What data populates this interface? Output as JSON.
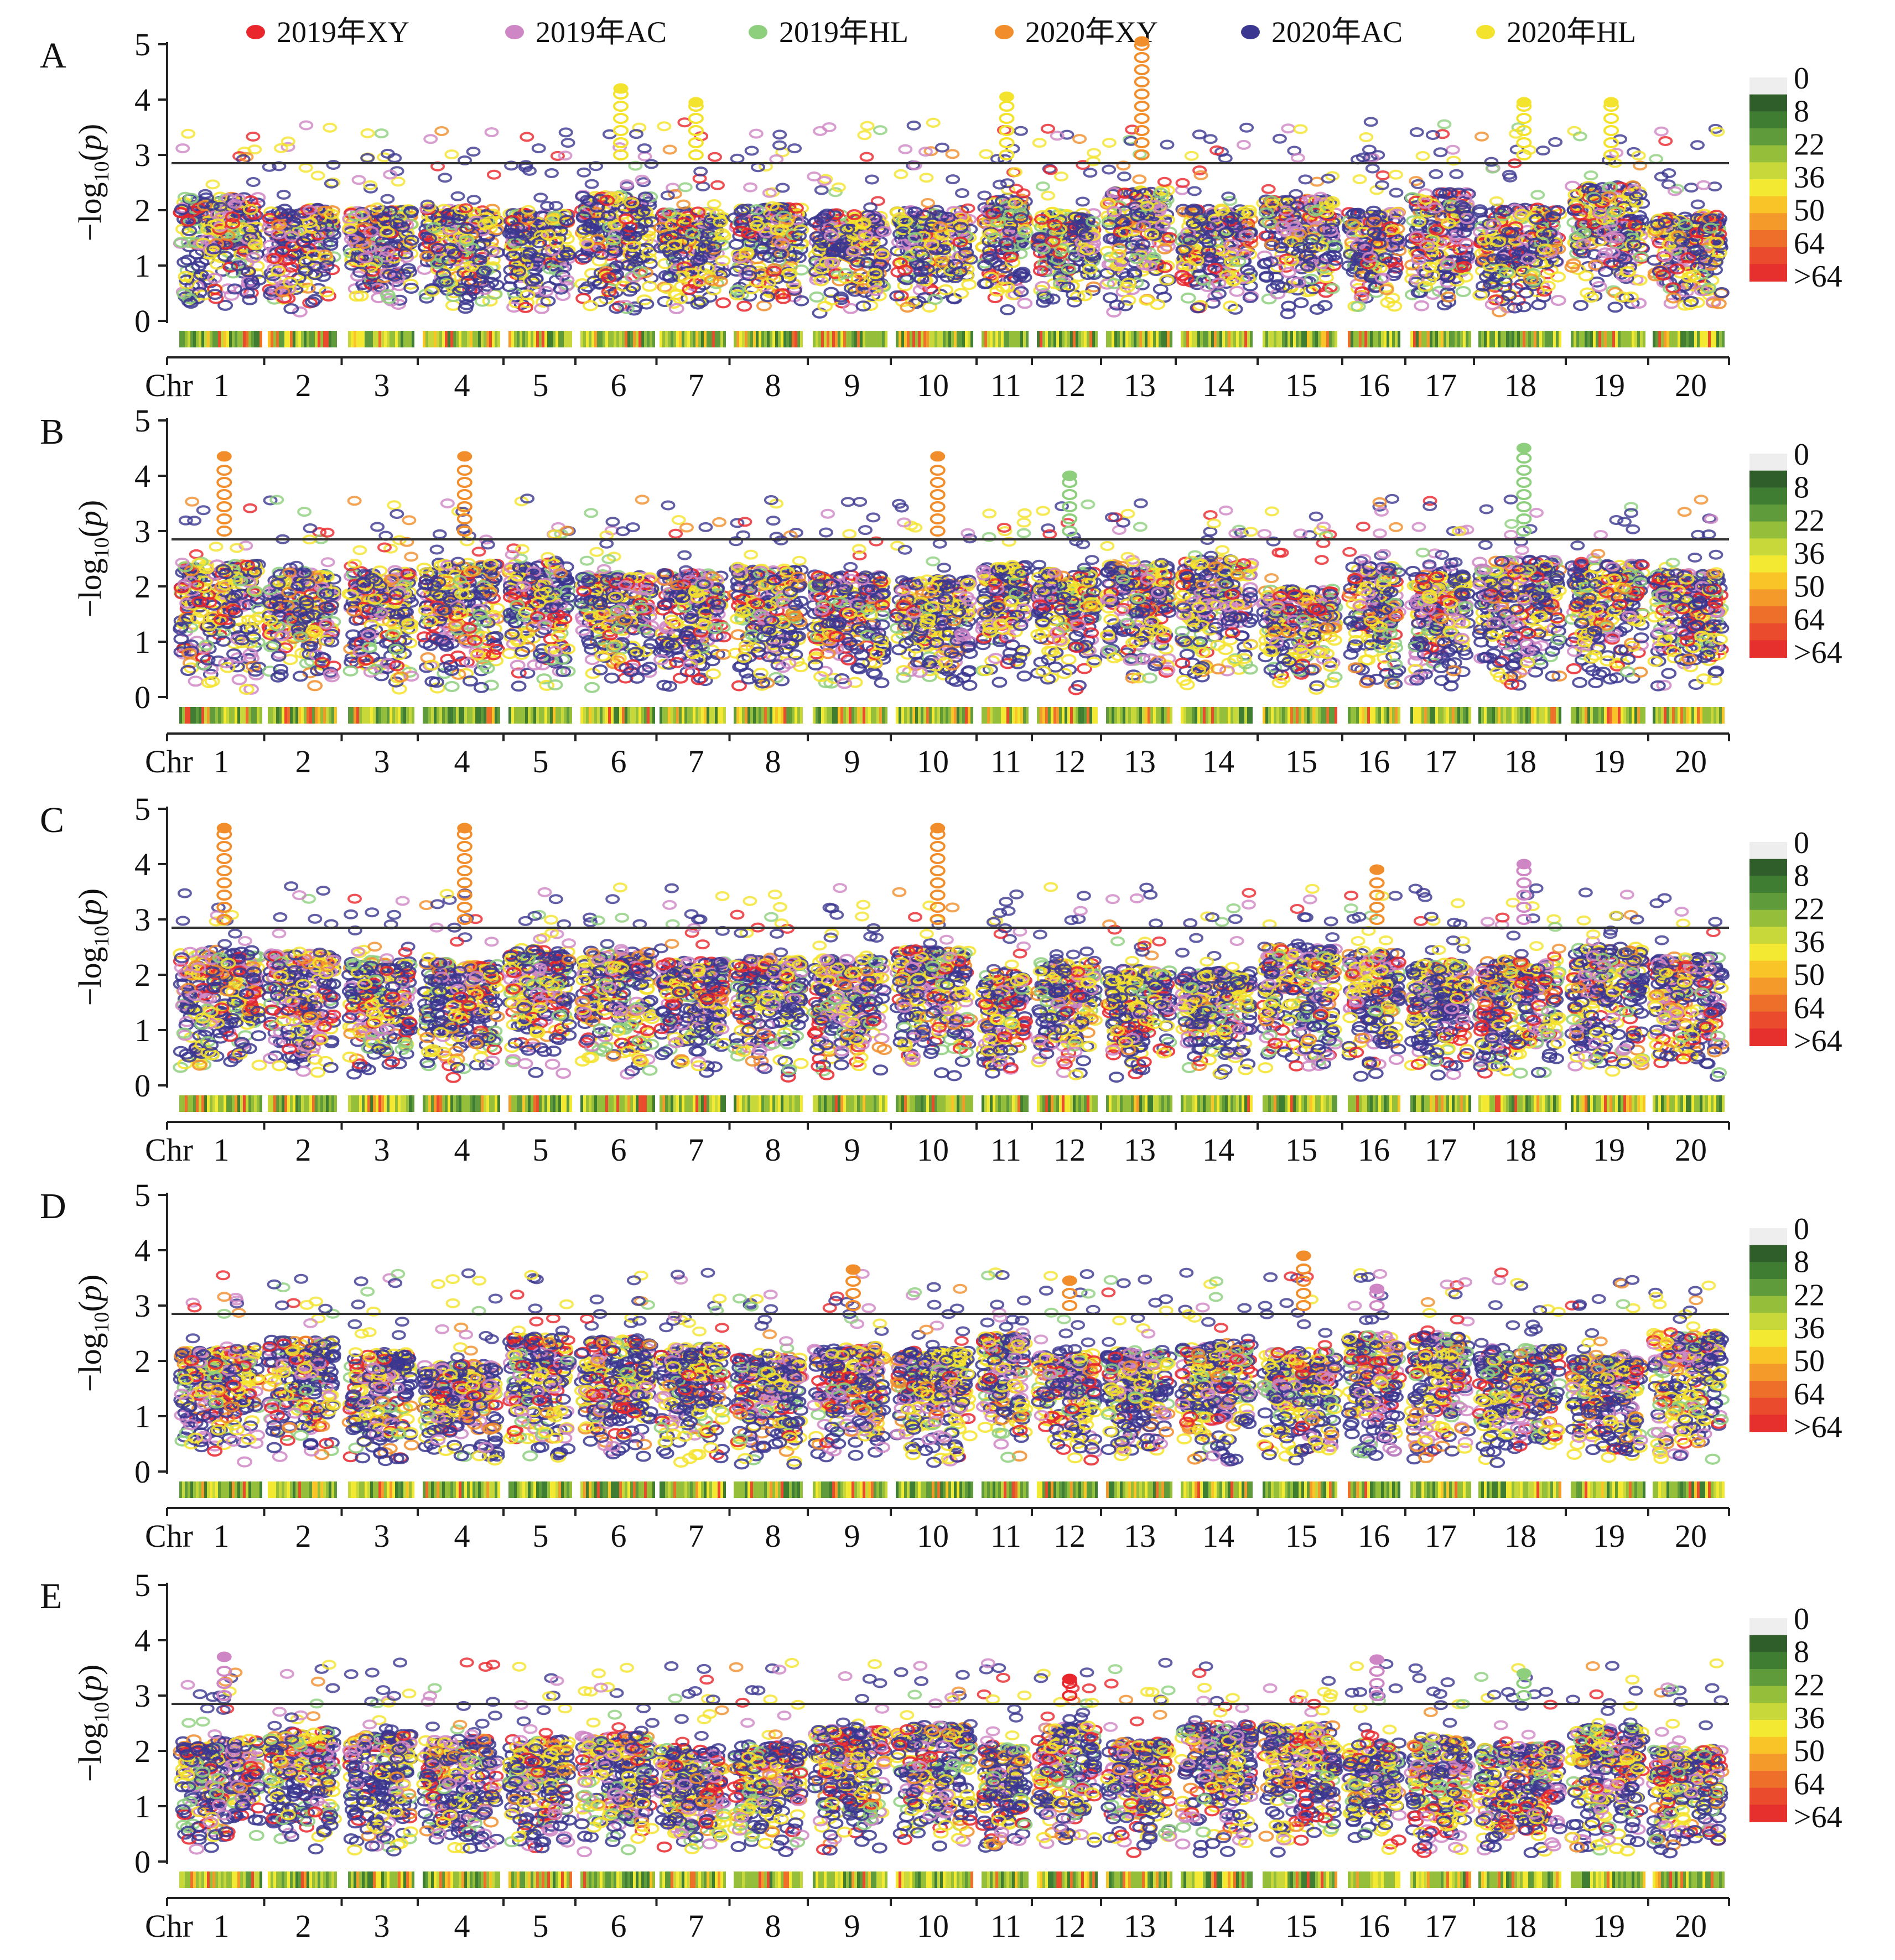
{
  "legend": [
    {
      "label": "2019年XY",
      "color": "#e8262b"
    },
    {
      "label": "2019年AC",
      "color": "#cf86c4"
    },
    {
      "label": "2019年HL",
      "color": "#8ecf7e"
    },
    {
      "label": "2020年XY",
      "color": "#f18d2a"
    },
    {
      "label": "2020年AC",
      "color": "#3b3790"
    },
    {
      "label": "2020年HL",
      "color": "#f4e32c"
    }
  ],
  "colorbar": {
    "labels": [
      "0",
      "8",
      "22",
      "36",
      "50",
      "64",
      ">64"
    ],
    "colors": [
      "#efeeee",
      "#2f5e2a",
      "#3f7d33",
      "#5f9b3a",
      "#95be3b",
      "#c8d83a",
      "#f3e933",
      "#f8c428",
      "#f39a2a",
      "#ee6f2a",
      "#e94b2c",
      "#e6302d"
    ]
  },
  "axis": {
    "ylabel": "−log10(p)",
    "yticks": [
      "0",
      "1",
      "2",
      "3",
      "4",
      "5"
    ],
    "xprefix": "Chr",
    "chromosomes": [
      "1",
      "2",
      "3",
      "4",
      "5",
      "6",
      "7",
      "8",
      "9",
      "10",
      "11",
      "12",
      "13",
      "14",
      "15",
      "16",
      "17",
      "18",
      "19",
      "20"
    ]
  },
  "chart_data": {
    "type": "scatter",
    "subtype": "multi-environment manhattan plot",
    "ylim": [
      0,
      5
    ],
    "threshold": 2.85,
    "series_names": [
      "2019年XY",
      "2019年AC",
      "2019年HL",
      "2020年XY",
      "2020年AC",
      "2020年HL"
    ],
    "panels": [
      {
        "label": "A",
        "top_hits": [
          {
            "chr": 6,
            "value": 4.2,
            "series": "2020年HL"
          },
          {
            "chr": 7,
            "value": 3.95,
            "series": "2020年HL"
          },
          {
            "chr": 11,
            "value": 4.05,
            "series": "2020年HL"
          },
          {
            "chr": 13,
            "value": 5.05,
            "series": "2020年XY"
          },
          {
            "chr": 18,
            "value": 3.95,
            "series": "2020年HL"
          },
          {
            "chr": 19,
            "value": 3.95,
            "series": "2020年HL"
          }
        ]
      },
      {
        "label": "B",
        "top_hits": [
          {
            "chr": 1,
            "value": 4.35,
            "series": "2020年XY"
          },
          {
            "chr": 4,
            "value": 4.35,
            "series": "2020年XY"
          },
          {
            "chr": 10,
            "value": 4.35,
            "series": "2020年XY"
          },
          {
            "chr": 12,
            "value": 4.0,
            "series": "2019年HL"
          },
          {
            "chr": 18,
            "value": 4.5,
            "series": "2019年HL"
          }
        ]
      },
      {
        "label": "C",
        "top_hits": [
          {
            "chr": 1,
            "value": 4.65,
            "series": "2020年XY"
          },
          {
            "chr": 4,
            "value": 4.65,
            "series": "2020年XY"
          },
          {
            "chr": 10,
            "value": 4.65,
            "series": "2020年XY"
          },
          {
            "chr": 16,
            "value": 3.9,
            "series": "2020年XY"
          },
          {
            "chr": 18,
            "value": 4.0,
            "series": "2019年AC"
          }
        ]
      },
      {
        "label": "D",
        "top_hits": [
          {
            "chr": 9,
            "value": 3.65,
            "series": "2020年XY"
          },
          {
            "chr": 12,
            "value": 3.45,
            "series": "2020年XY"
          },
          {
            "chr": 15,
            "value": 3.9,
            "series": "2020年XY"
          },
          {
            "chr": 16,
            "value": 3.3,
            "series": "2019年AC"
          }
        ]
      },
      {
        "label": "E",
        "top_hits": [
          {
            "chr": 1,
            "value": 3.7,
            "series": "2019年AC"
          },
          {
            "chr": 12,
            "value": 3.3,
            "series": "2019年XY"
          },
          {
            "chr": 16,
            "value": 3.65,
            "series": "2019年AC"
          },
          {
            "chr": 18,
            "value": 3.4,
            "series": "2019年HL"
          }
        ]
      }
    ]
  }
}
